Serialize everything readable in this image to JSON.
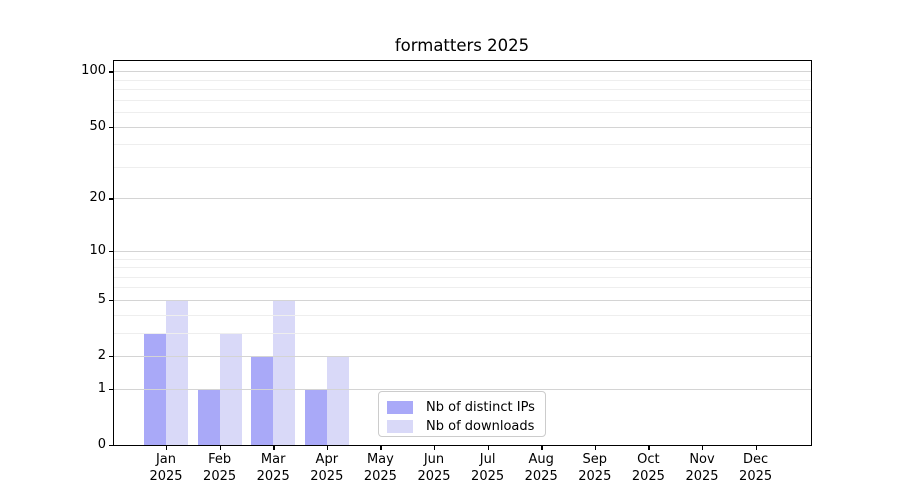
{
  "chart_data": {
    "type": "bar",
    "title": "formatters 2025",
    "categories": [
      "Jan",
      "Feb",
      "Mar",
      "Apr",
      "May",
      "Jun",
      "Jul",
      "Aug",
      "Sep",
      "Oct",
      "Nov",
      "Dec"
    ],
    "x_tick_year": "2025",
    "series": [
      {
        "name": "Nb of distinct IPs",
        "color": "#a9a9f8",
        "values": [
          3,
          1,
          2,
          1,
          0,
          0,
          0,
          0,
          0,
          0,
          0,
          0
        ]
      },
      {
        "name": "Nb of downloads",
        "color": "#d9d9f8",
        "values": [
          5,
          3,
          5,
          2,
          0,
          0,
          0,
          0,
          0,
          0,
          0,
          0
        ]
      }
    ],
    "yscale": "log1p",
    "ylim": [
      0,
      115
    ],
    "y_ticks": [
      0,
      1,
      2,
      5,
      10,
      20,
      50,
      100
    ],
    "y_tick_labels": [
      "0",
      "1",
      "2",
      "5",
      "10",
      "20",
      "50",
      "100"
    ],
    "y_minor_gridlines": [
      3,
      4,
      6,
      7,
      8,
      9,
      30,
      40,
      60,
      70,
      80,
      90
    ],
    "grid": true,
    "legend_position": "lower center",
    "colors": {
      "background": "#ffffff",
      "spine": "#000000",
      "major_grid": "#d4d4d4",
      "minor_grid": "#eeeeee",
      "legend_border": "#cccccc",
      "text": "#000000"
    }
  }
}
